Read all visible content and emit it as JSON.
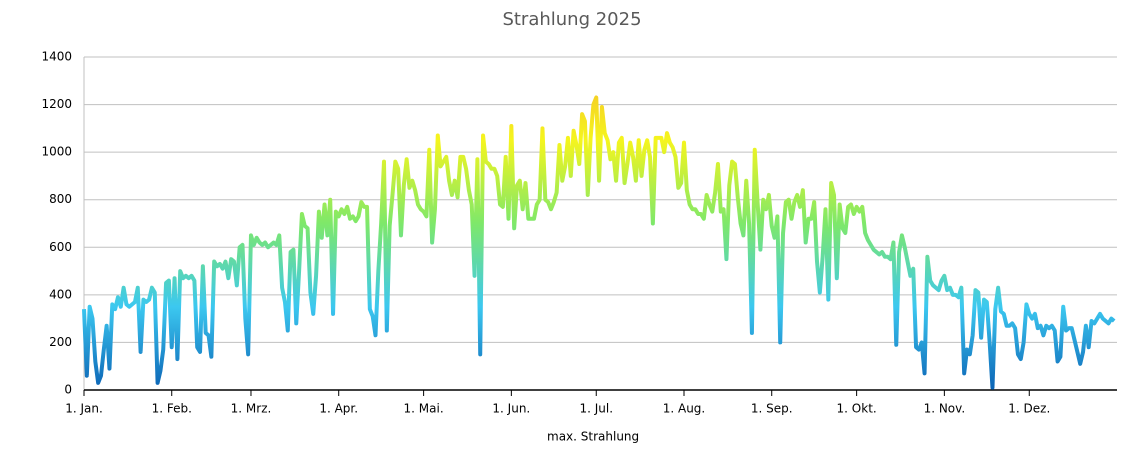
{
  "chart_data": {
    "type": "line",
    "title": "Strahlung 2025",
    "categories": [
      "1. Jan.",
      null,
      null,
      null,
      null,
      null,
      null,
      null,
      null,
      null,
      null,
      null,
      null,
      null,
      null,
      null,
      null,
      null,
      null,
      null,
      null,
      null,
      null,
      null,
      null,
      null,
      null,
      null,
      null,
      null,
      null,
      "1. Feb.",
      null,
      null,
      null,
      null,
      null,
      null,
      null,
      null,
      null,
      null,
      null,
      null,
      null,
      null,
      null,
      null,
      null,
      null,
      null,
      null,
      null,
      null,
      null,
      null,
      null,
      null,
      null,
      "1. Mrz.",
      null,
      null,
      null,
      null,
      null,
      null,
      null,
      null,
      null,
      null,
      null,
      null,
      null,
      null,
      null,
      null,
      null,
      null,
      null,
      null,
      null,
      null,
      null,
      null,
      null,
      null,
      null,
      null,
      null,
      null,
      "1. Apr.",
      null,
      null,
      null,
      null,
      null,
      null,
      null,
      null,
      null,
      null,
      null,
      null,
      null,
      null,
      null,
      null,
      null,
      null,
      null,
      null,
      null,
      null,
      null,
      null,
      null,
      null,
      null,
      null,
      null,
      "1. Mai.",
      null,
      null,
      null,
      null,
      null,
      null,
      null,
      null,
      null,
      null,
      null,
      null,
      null,
      null,
      null,
      null,
      null,
      null,
      null,
      null,
      null,
      null,
      null,
      null,
      null,
      null,
      null,
      null,
      null,
      null,
      "1. Jun.",
      null,
      null,
      null,
      null,
      null,
      null,
      null,
      null,
      null,
      null,
      null,
      null,
      null,
      null,
      null,
      null,
      null,
      null,
      null,
      null,
      null,
      null,
      null,
      null,
      null,
      null,
      null,
      null,
      null,
      "1. Jul.",
      null,
      null,
      null,
      null,
      null,
      null,
      null,
      null,
      null,
      null,
      null,
      null,
      null,
      null,
      null,
      null,
      null,
      null,
      null,
      null,
      null,
      null,
      null,
      null,
      null,
      null,
      null,
      null,
      null,
      null,
      "1. Aug.",
      null,
      null,
      null,
      null,
      null,
      null,
      null,
      null,
      null,
      null,
      null,
      null,
      null,
      null,
      null,
      null,
      null,
      null,
      null,
      null,
      null,
      null,
      null,
      null,
      null,
      null,
      null,
      null,
      null,
      null,
      "1. Sep.",
      null,
      null,
      null,
      null,
      null,
      null,
      null,
      null,
      null,
      null,
      null,
      null,
      null,
      null,
      null,
      null,
      null,
      null,
      null,
      null,
      null,
      null,
      null,
      null,
      null,
      null,
      null,
      null,
      null,
      "1. Okt.",
      null,
      null,
      null,
      null,
      null,
      null,
      null,
      null,
      null,
      null,
      null,
      null,
      null,
      null,
      null,
      null,
      null,
      null,
      null,
      null,
      null,
      null,
      null,
      null,
      null,
      null,
      null,
      null,
      null,
      null,
      "1. Nov.",
      null,
      null,
      null,
      null,
      null,
      null,
      null,
      null,
      null,
      null,
      null,
      null,
      null,
      null,
      null,
      null,
      null,
      null,
      null,
      null,
      null,
      null,
      null,
      null,
      null,
      null,
      null,
      null,
      null,
      "1. Dez.",
      null,
      null,
      null,
      null,
      null,
      null,
      null,
      null,
      null,
      null,
      null,
      null,
      null,
      null,
      null,
      null,
      null,
      null,
      null,
      null,
      null,
      null,
      null,
      null,
      null,
      null,
      null,
      null,
      null,
      null
    ],
    "series": [
      {
        "name": "max. Strahlung",
        "colors": [
          "#0b63b5",
          "#3cc8f0",
          "#7ee86a",
          "#f5f51e",
          "#f5b42a"
        ],
        "values": [
          340,
          60,
          350,
          300,
          120,
          30,
          60,
          170,
          270,
          90,
          360,
          340,
          390,
          350,
          430,
          360,
          350,
          360,
          370,
          430,
          160,
          380,
          370,
          380,
          430,
          410,
          30,
          80,
          170,
          450,
          460,
          180,
          470,
          130,
          500,
          470,
          480,
          470,
          480,
          460,
          180,
          160,
          520,
          240,
          230,
          140,
          540,
          520,
          530,
          510,
          540,
          470,
          550,
          540,
          440,
          600,
          610,
          300,
          150,
          650,
          610,
          640,
          620,
          610,
          620,
          600,
          610,
          620,
          610,
          650,
          430,
          370,
          250,
          580,
          590,
          280,
          500,
          740,
          690,
          680,
          410,
          320,
          480,
          750,
          640,
          780,
          650,
          800,
          320,
          750,
          730,
          760,
          740,
          770,
          720,
          730,
          710,
          730,
          790,
          770,
          770,
          340,
          310,
          230,
          500,
          700,
          960,
          250,
          690,
          820,
          960,
          930,
          650,
          860,
          970,
          850,
          880,
          840,
          780,
          760,
          750,
          730,
          1010,
          620,
          760,
          1070,
          940,
          960,
          980,
          880,
          820,
          880,
          810,
          980,
          980,
          930,
          840,
          780,
          480,
          970,
          150,
          1070,
          960,
          950,
          930,
          930,
          900,
          780,
          770,
          980,
          720,
          1110,
          680,
          860,
          880,
          760,
          870,
          720,
          720,
          720,
          780,
          800,
          1100,
          800,
          790,
          760,
          790,
          830,
          1030,
          880,
          940,
          1060,
          900,
          1090,
          1030,
          950,
          1160,
          1130,
          820,
          1060,
          1200,
          1230,
          880,
          1190,
          1080,
          1050,
          970,
          1000,
          880,
          1040,
          1060,
          870,
          950,
          1040,
          980,
          880,
          1050,
          900,
          1010,
          1050,
          980,
          700,
          1060,
          1060,
          1060,
          1000,
          1080,
          1040,
          1020,
          980,
          850,
          870,
          1040,
          840,
          780,
          760,
          760,
          740,
          740,
          720,
          820,
          780,
          750,
          830,
          950,
          750,
          760,
          550,
          860,
          960,
          950,
          810,
          700,
          650,
          880,
          700,
          240,
          1010,
          790,
          590,
          800,
          760,
          820,
          690,
          640,
          730,
          200,
          660,
          790,
          800,
          720,
          790,
          820,
          770,
          840,
          620,
          720,
          720,
          790,
          540,
          410,
          560,
          760,
          380,
          870,
          820,
          470,
          780,
          680,
          660,
          770,
          780,
          740,
          770,
          750,
          770,
          660,
          630,
          610,
          590,
          580,
          570,
          580,
          560,
          560,
          550,
          620,
          190,
          580,
          650,
          600,
          540,
          480,
          510,
          180,
          170,
          200,
          70,
          560,
          460,
          440,
          430,
          420,
          460,
          480,
          420,
          430,
          400,
          400,
          390,
          430,
          70,
          170,
          150,
          230,
          420,
          410,
          220,
          380,
          370,
          200,
          10,
          340,
          430,
          330,
          320,
          270,
          270,
          280,
          260,
          150,
          130,
          200,
          360,
          320,
          300,
          320,
          260,
          270,
          230,
          270,
          260,
          270,
          250,
          120,
          140,
          350,
          250,
          260,
          260,
          210,
          160,
          110,
          160,
          270,
          180,
          290,
          280,
          300,
          320,
          300,
          290,
          280,
          300,
          290
        ]
      }
    ],
    "ylim": [
      0,
      1400
    ],
    "yticks": [
      0,
      200,
      400,
      600,
      800,
      1000,
      1200,
      1400
    ],
    "grid": true,
    "legend": "bottom"
  }
}
